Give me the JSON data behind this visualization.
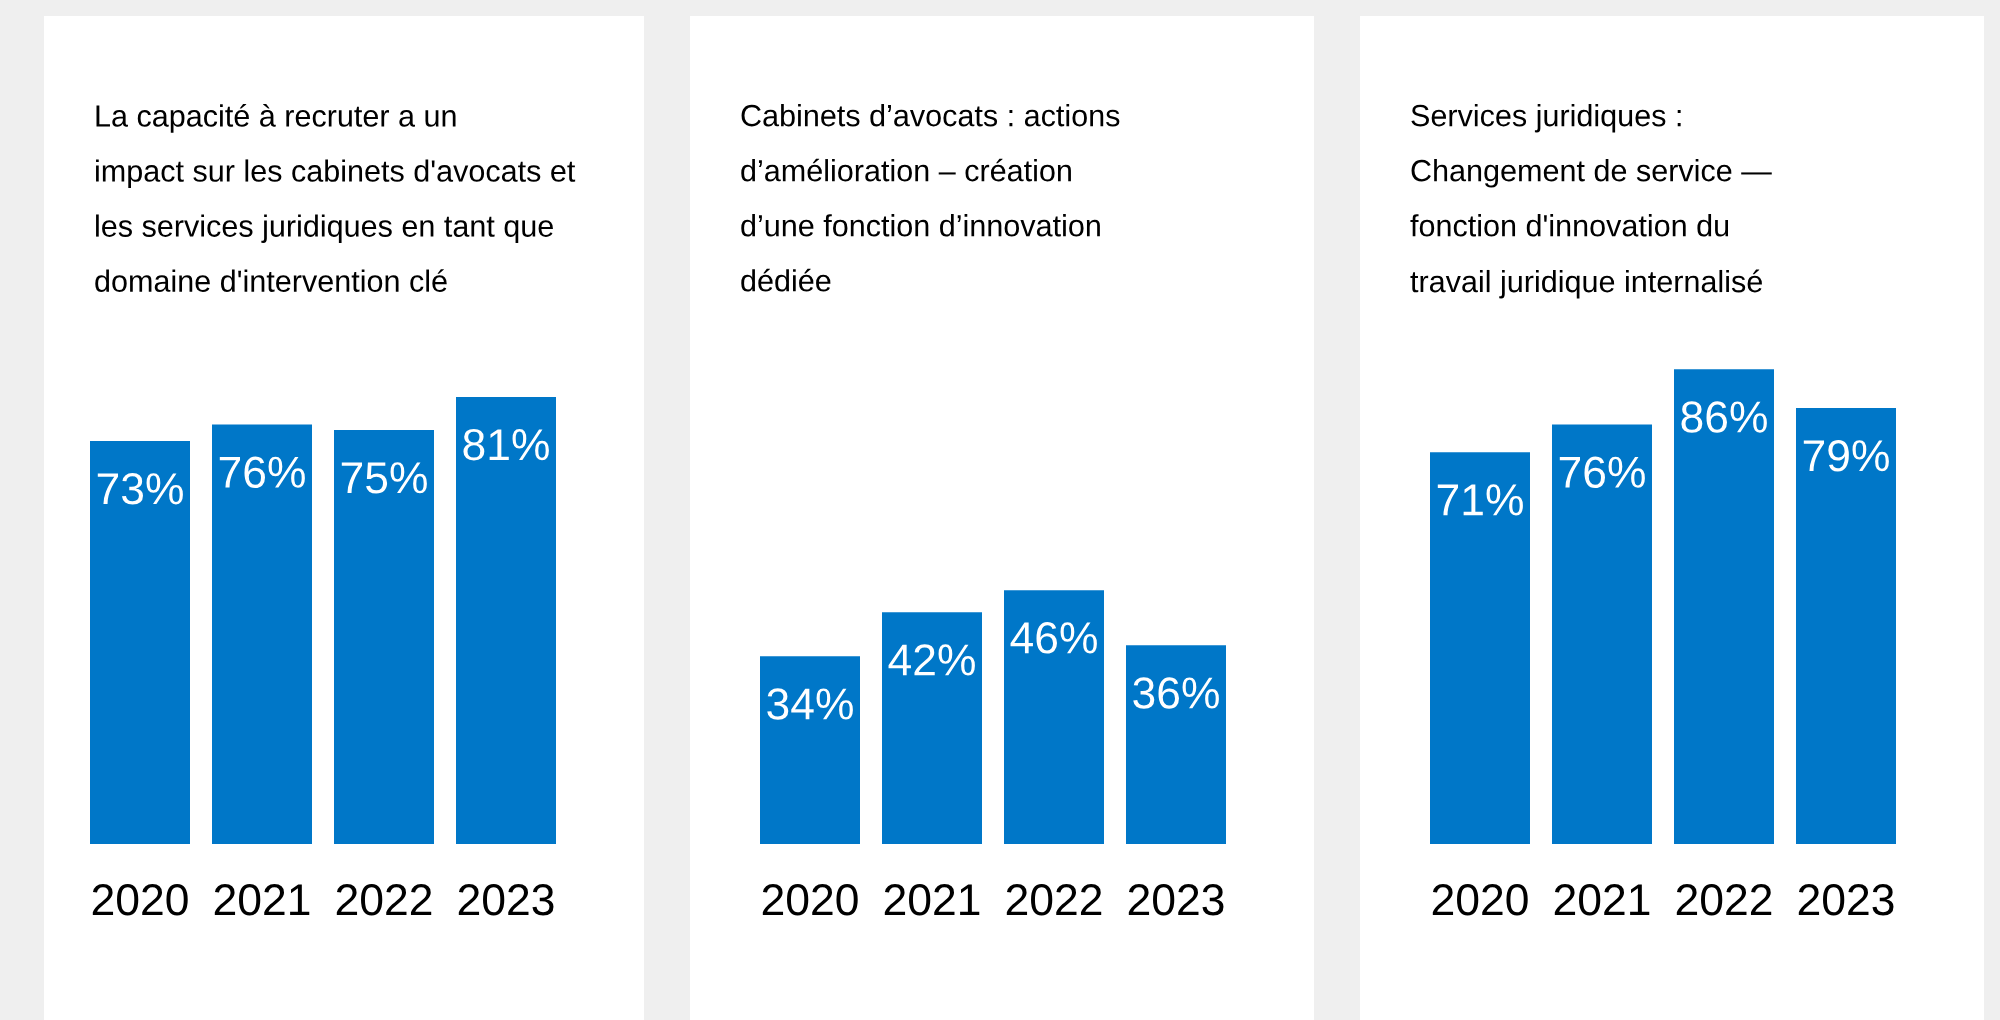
{
  "chart_data": [
    {
      "type": "bar",
      "title": "La capacité à recruter a un\nimpact sur les cabinets d'avocats et\nles services juridiques en tant que\ndomaine d'intervention clé",
      "categories": [
        "2020",
        "2021",
        "2022",
        "2023"
      ],
      "values": [
        73,
        76,
        75,
        81
      ],
      "value_labels": [
        "73%",
        "76%",
        "75%",
        "81%"
      ],
      "color": "#0077c8",
      "tick_labels": "x",
      "grid": false,
      "legend": false
    },
    {
      "type": "bar",
      "title": "Cabinets d’avocats : actions\nd’amélioration – création\nd’une fonction d’innovation\ndédiée",
      "categories": [
        "2020",
        "2021",
        "2022",
        "2023"
      ],
      "values": [
        34,
        42,
        46,
        36
      ],
      "value_labels": [
        "34%",
        "42%",
        "46%",
        "36%"
      ],
      "color": "#0077c8",
      "tick_labels": "x",
      "grid": false,
      "legend": false
    },
    {
      "type": "bar",
      "title": "Services juridiques :\nChangement de service —\nfonction d'innovation du\ntravail juridique internalisé",
      "categories": [
        "2020",
        "2021",
        "2022",
        "2023"
      ],
      "values": [
        71,
        76,
        86,
        79
      ],
      "value_labels": [
        "71%",
        "76%",
        "86%",
        "79%"
      ],
      "color": "#0077c8",
      "tick_labels": "x",
      "grid": false,
      "legend": false
    }
  ]
}
